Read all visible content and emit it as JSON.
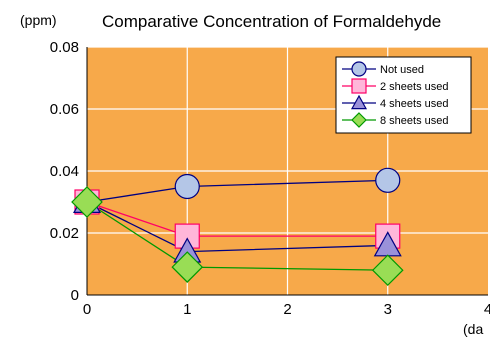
{
  "chart_data": {
    "type": "line",
    "title": "Comparative Concentration of Formaldehyde",
    "y_unit": "(ppm)",
    "x_unit": "(da",
    "xlim": [
      0,
      4
    ],
    "ylim": [
      0,
      0.08
    ],
    "x_ticks": [
      "0",
      "1",
      "2",
      "3",
      "4"
    ],
    "y_ticks": [
      "0",
      "0.02",
      "0.04",
      "0.06",
      "0.08"
    ],
    "grid": true,
    "legend_position": "top-right",
    "plot_background": "#F7A94A",
    "series": [
      {
        "name": "Not used",
        "marker": "circle",
        "color": "#000080",
        "fill": "#B4C6E7",
        "x": [
          0,
          1,
          3
        ],
        "y": [
          0.03,
          0.035,
          0.037
        ]
      },
      {
        "name": "2 sheets used",
        "marker": "square",
        "color": "#FF0066",
        "fill": "#FFB6D9",
        "x": [
          0,
          1,
          3
        ],
        "y": [
          0.03,
          0.019,
          0.019
        ]
      },
      {
        "name": "4 sheets used",
        "marker": "triangle",
        "color": "#000080",
        "fill": "#9A91D9",
        "x": [
          0,
          1,
          3
        ],
        "y": [
          0.03,
          0.014,
          0.016
        ]
      },
      {
        "name": "8 sheets used",
        "marker": "diamond",
        "color": "#009900",
        "fill": "#99DD55",
        "x": [
          0,
          1,
          3
        ],
        "y": [
          0.03,
          0.009,
          0.008
        ]
      }
    ]
  }
}
